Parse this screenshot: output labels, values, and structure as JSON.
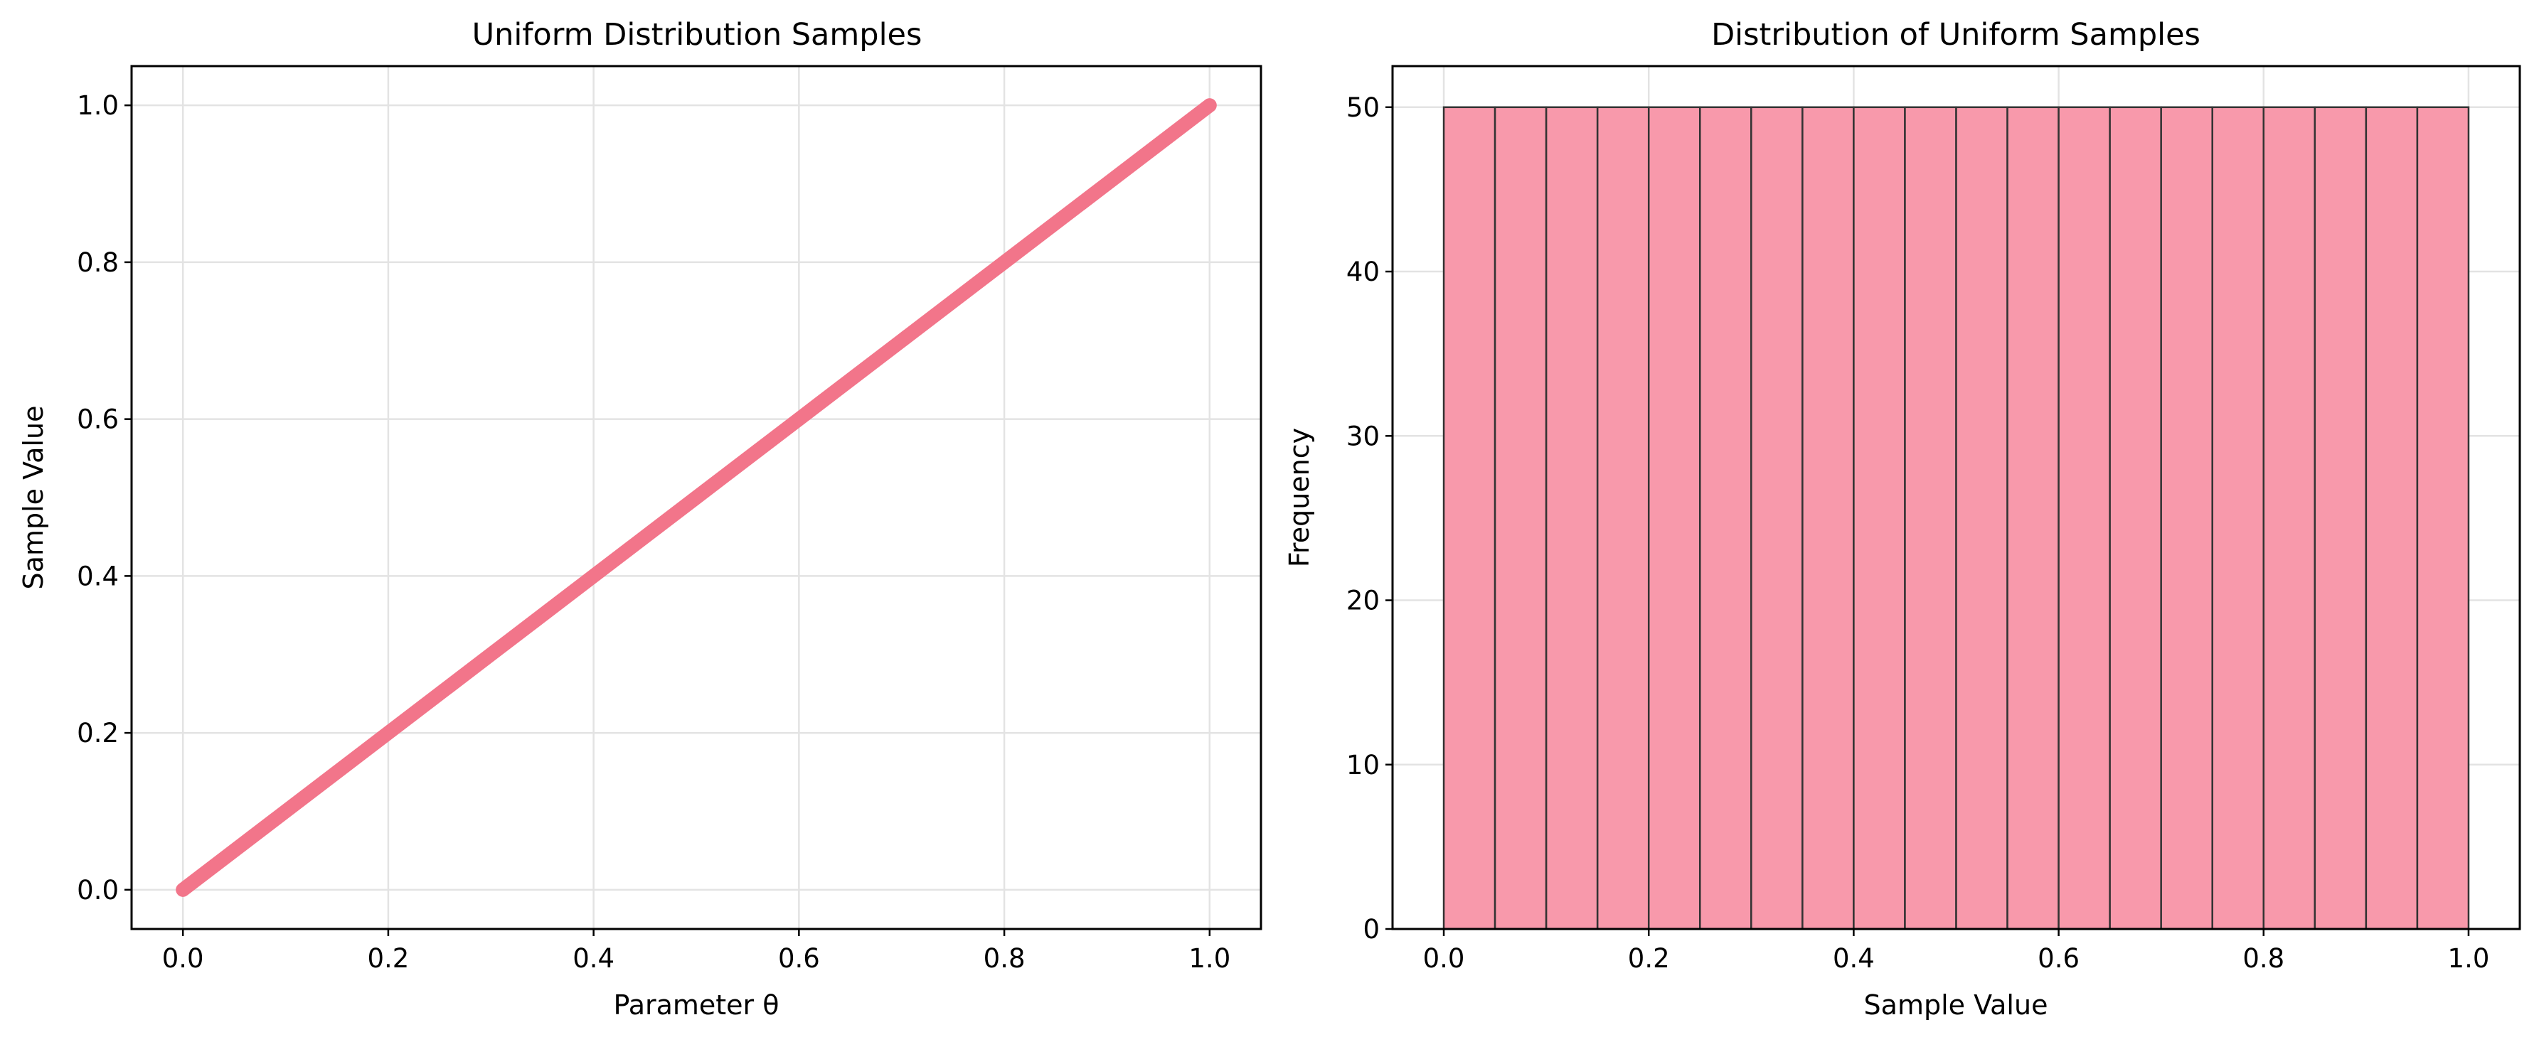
{
  "chart_data": [
    {
      "type": "line",
      "title": "Uniform Distribution Samples",
      "xlabel": "Parameter θ",
      "ylabel": "Sample Value",
      "xlim": [
        -0.05,
        1.05
      ],
      "ylim": [
        -0.05,
        1.05
      ],
      "xticks": [
        "0.0",
        "0.2",
        "0.4",
        "0.6",
        "0.8",
        "1.0"
      ],
      "yticks": [
        "0.0",
        "0.2",
        "0.4",
        "0.6",
        "0.8",
        "1.0"
      ],
      "grid": true,
      "color": "#f2758a",
      "series": [
        {
          "x": [
            0.0,
            0.1,
            0.2,
            0.3,
            0.4,
            0.5,
            0.6,
            0.7,
            0.8,
            0.9,
            1.0
          ],
          "y": [
            0.0,
            0.1,
            0.2,
            0.3,
            0.4,
            0.5,
            0.6,
            0.7,
            0.8,
            0.9,
            1.0
          ]
        }
      ]
    },
    {
      "type": "bar",
      "title": "Distribution of Uniform Samples",
      "xlabel": "Sample Value",
      "ylabel": "Frequency",
      "xlim": [
        -0.05,
        1.05
      ],
      "ylim": [
        0,
        52.5
      ],
      "xticks": [
        "0.0",
        "0.2",
        "0.4",
        "0.6",
        "0.8",
        "1.0"
      ],
      "yticks": [
        "0",
        "10",
        "20",
        "30",
        "40",
        "50"
      ],
      "grid": true,
      "color": "#f899ab",
      "edge_color": "#333333",
      "bin_edges": [
        0.0,
        0.05,
        0.1,
        0.15,
        0.2,
        0.25,
        0.3,
        0.35,
        0.4,
        0.45,
        0.5,
        0.55,
        0.6,
        0.65,
        0.7,
        0.75,
        0.8,
        0.85,
        0.9,
        0.95,
        1.0
      ],
      "values": [
        50,
        50,
        50,
        50,
        50,
        50,
        50,
        50,
        50,
        50,
        50,
        50,
        50,
        50,
        50,
        50,
        50,
        50,
        50,
        50
      ]
    }
  ]
}
